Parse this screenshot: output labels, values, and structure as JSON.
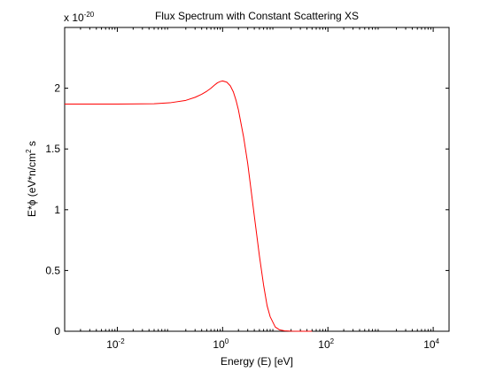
{
  "chart_data": {
    "type": "line",
    "title": "Flux Spectrum with Constant Scattering XS",
    "xlabel": "Energy (E) [eV]",
    "ylabel": {
      "pre": "E*ϕ (eV*n/cm",
      "sup": "2",
      "post": " s"
    },
    "x_scale": "log",
    "xlim": [
      0.001,
      20000
    ],
    "ylim": [
      0,
      2.5
    ],
    "y_multiplier": {
      "base": "x 10",
      "exponent": "-20"
    },
    "x_ticks": [
      {
        "value": 0.01,
        "base": "10",
        "exp": "-2"
      },
      {
        "value": 1,
        "base": "10",
        "exp": "0"
      },
      {
        "value": 100,
        "base": "10",
        "exp": "2"
      },
      {
        "value": 10000,
        "base": "10",
        "exp": "4"
      }
    ],
    "y_ticks": [
      {
        "value": 0,
        "label": "0"
      },
      {
        "value": 0.5,
        "label": "0.5"
      },
      {
        "value": 1,
        "label": "1"
      },
      {
        "value": 1.5,
        "label": "1.5"
      },
      {
        "value": 2,
        "label": "2"
      }
    ],
    "grid": false,
    "legend": "none",
    "series": [
      {
        "color": "#ff0000",
        "x": [
          0.001,
          0.01,
          0.05,
          0.1,
          0.2,
          0.3,
          0.4,
          0.5,
          0.6,
          0.7,
          0.8,
          0.9,
          1.0,
          1.2,
          1.4,
          1.6,
          1.8,
          2.0,
          2.5,
          3.0,
          3.5,
          4.0,
          5.0,
          6.0,
          7.0,
          8.0,
          10,
          12,
          15,
          20,
          30,
          50
        ],
        "y": [
          1.87,
          1.87,
          1.872,
          1.88,
          1.9,
          1.925,
          1.95,
          1.975,
          2.0,
          2.025,
          2.045,
          2.055,
          2.06,
          2.05,
          2.02,
          1.97,
          1.9,
          1.82,
          1.6,
          1.38,
          1.15,
          0.95,
          0.62,
          0.38,
          0.21,
          0.12,
          0.035,
          0.012,
          0.004,
          0.001,
          0.0,
          0.0
        ]
      }
    ]
  }
}
